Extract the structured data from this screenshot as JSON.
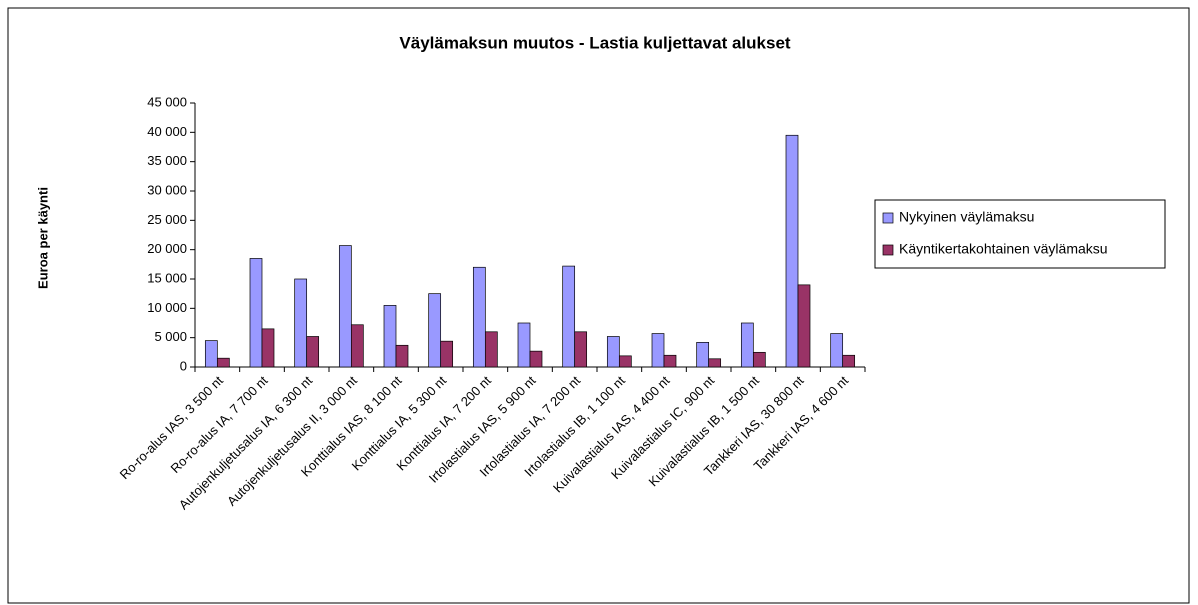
{
  "chart_data": {
    "type": "bar",
    "title": "Väylämaksun muutos - Lastia kuljettavat alukset",
    "y_label": "Euroa per käynti",
    "categories": [
      "Ro-ro-alus IAS, 3 500 nt",
      "Ro-ro-alus IA, 7 700 nt",
      "Autojenkuljetusalus IA, 6 300 nt",
      "Autojenkuljetusalus II, 3 000 nt",
      "Konttialus IAS, 8 100 nt",
      "Konttialus IA, 5 300 nt",
      "Konttialus IA, 7 200 nt",
      "Irtolastialus IAS, 5 900 nt",
      "Irtolastialus IA, 7 200 nt",
      "Irtolastialus IB, 1 100 nt",
      "Kuivalastialus IAS, 4 400 nt",
      "Kuivalastialus IC, 900 nt",
      "Kuivalastialus IB, 1 500 nt",
      "Tankkeri IAS, 30 800 nt",
      "Tankkeri IAS, 4 600 nt"
    ],
    "series": [
      {
        "name": "Nykyinen väylämaksu",
        "color": "#9999ff",
        "values": [
          4500,
          18500,
          15000,
          20700,
          10500,
          12500,
          17000,
          7500,
          17200,
          5200,
          5700,
          4200,
          7500,
          39500,
          5700
        ]
      },
      {
        "name": "Käyntikertakohtainen väylämaksu",
        "color": "#993366",
        "values": [
          1500,
          6500,
          5200,
          7200,
          3700,
          4400,
          6000,
          2700,
          6000,
          1900,
          2000,
          1400,
          2500,
          14000,
          2000
        ]
      }
    ],
    "ylim": [
      0,
      45000
    ],
    "yticks": [
      0,
      {
        "value": 5000,
        "label": "5 000"
      },
      {
        "value": 10000,
        "label": "10 000"
      },
      {
        "value": 15000,
        "label": "15 000"
      },
      {
        "value": 20000,
        "label": "20 000"
      },
      {
        "value": 25000,
        "label": "25 000"
      },
      {
        "value": 30000,
        "label": "30 000"
      },
      {
        "value": 35000,
        "label": "35 000"
      },
      {
        "value": 40000,
        "label": "40 000"
      },
      {
        "value": 45000,
        "label": "45 000"
      }
    ],
    "legend": "right"
  }
}
